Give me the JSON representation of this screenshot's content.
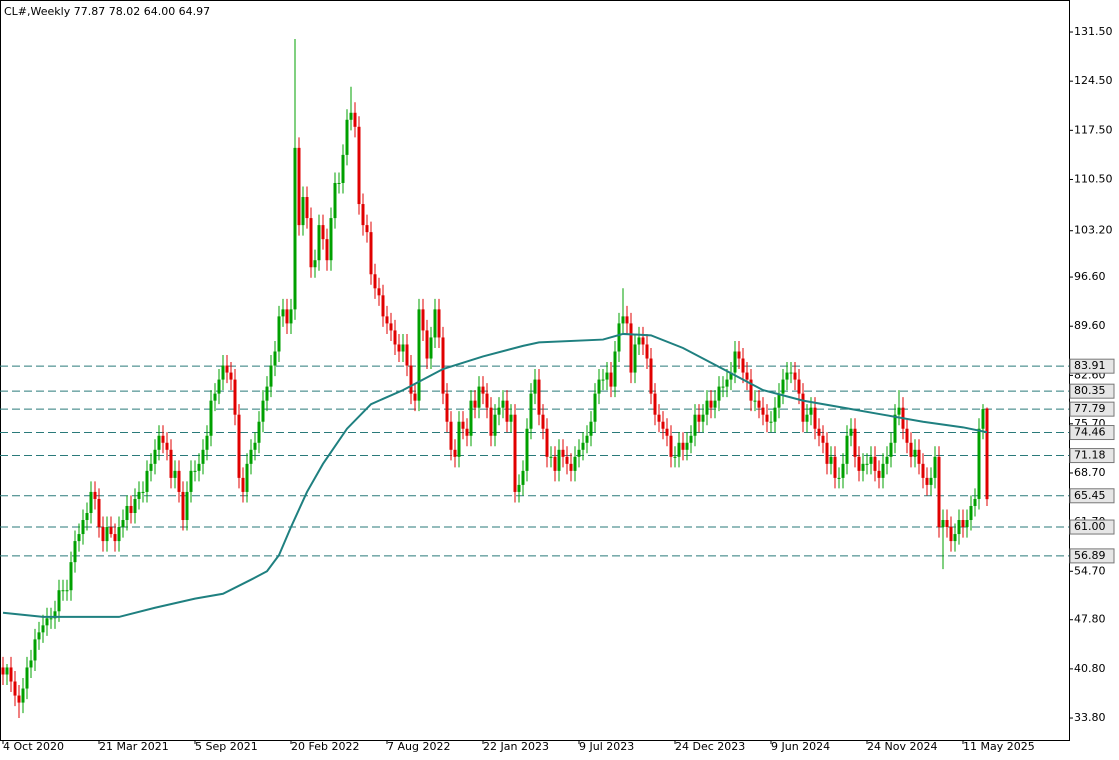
{
  "chart_data": {
    "type": "candlestick",
    "title": "CL#,Weekly  77.87 78.02 64.00 64.97",
    "xlim": [
      -0.75,
      266.5
    ],
    "ylim": [
      30.67,
      136.06
    ],
    "xticks": [
      {
        "value": 0,
        "label": "4 Oct 2020"
      },
      {
        "value": 24,
        "label": "21 Mar 2021"
      },
      {
        "value": 48,
        "label": "5 Sep 2021"
      },
      {
        "value": 72,
        "label": "20 Feb 2022"
      },
      {
        "value": 96,
        "label": "7 Aug 2022"
      },
      {
        "value": 120,
        "label": "22 Jan 2023"
      },
      {
        "value": 144,
        "label": "9 Jul 2023"
      },
      {
        "value": 168,
        "label": "24 Dec 2023"
      },
      {
        "value": 192,
        "label": "9 Jun 2024"
      },
      {
        "value": 216,
        "label": "24 Nov 2024"
      },
      {
        "value": 240,
        "label": "11 May 2025"
      }
    ],
    "yticks": [
      {
        "value": 131.5,
        "label": "131.50"
      },
      {
        "value": 124.5,
        "label": "124.50"
      },
      {
        "value": 117.5,
        "label": "117.50"
      },
      {
        "value": 110.5,
        "label": "110.50"
      },
      {
        "value": 103.2,
        "label": "103.20"
      },
      {
        "value": 96.6,
        "label": "96.60"
      },
      {
        "value": 89.6,
        "label": "89.60"
      },
      {
        "value": 82.6,
        "label": "82.60"
      },
      {
        "value": 75.7,
        "label": "75.70"
      },
      {
        "value": 68.7,
        "label": "68.70"
      },
      {
        "value": 61.7,
        "label": "61.70"
      },
      {
        "value": 54.7,
        "label": "54.70"
      },
      {
        "value": 47.8,
        "label": "47.80"
      },
      {
        "value": 40.8,
        "label": "40.80"
      },
      {
        "value": 33.8,
        "label": "33.80"
      }
    ],
    "up_color": "#00a000",
    "down_color": "#e00000",
    "open": [
      41,
      40,
      41,
      39,
      37,
      36,
      38,
      41,
      42,
      45,
      46,
      47,
      48,
      48,
      49,
      52,
      52,
      52,
      56,
      59,
      60,
      62,
      63,
      66,
      65,
      61,
      59,
      61,
      60,
      59,
      61,
      62,
      64,
      63,
      65,
      66,
      66,
      69,
      70,
      72,
      74,
      73,
      72,
      68,
      69,
      66,
      62,
      66,
      69,
      69,
      70,
      72,
      74,
      79,
      80,
      82,
      84,
      83,
      82,
      77,
      68,
      66,
      70,
      72,
      73,
      76,
      79,
      81,
      84,
      86,
      91,
      92,
      90,
      92,
      115,
      104,
      108,
      105,
      98,
      99,
      104,
      102,
      99,
      105,
      110,
      110,
      114,
      119,
      120,
      118,
      107,
      104,
      103,
      97,
      95,
      94,
      91,
      90,
      89,
      87,
      86,
      87,
      84,
      80,
      79,
      92,
      89,
      85,
      88,
      92,
      88,
      80,
      76,
      72,
      71,
      76,
      75,
      74,
      79,
      78,
      81,
      80,
      78,
      74,
      77,
      78,
      79,
      76,
      77,
      66,
      67,
      69,
      75,
      80,
      82,
      77,
      75,
      71,
      71,
      69,
      72,
      71,
      70,
      69,
      71,
      72,
      73,
      74,
      76,
      80,
      82,
      82,
      83,
      81,
      86,
      90,
      91,
      90,
      83,
      87,
      88,
      87,
      85,
      80,
      77,
      76,
      75,
      74,
      71,
      71,
      73,
      72,
      73,
      74,
      77,
      76,
      77,
      79,
      78,
      79,
      81,
      81,
      82,
      83,
      86,
      85,
      83,
      82,
      79,
      79,
      78,
      77,
      76,
      76,
      78,
      80,
      82,
      83,
      83,
      82,
      80,
      76,
      77,
      78,
      75,
      74,
      73,
      70,
      71,
      68,
      68,
      70,
      74,
      75,
      71,
      69,
      70,
      70,
      71,
      69,
      68,
      70,
      71,
      73,
      77,
      78,
      75,
      73,
      71,
      72,
      70,
      68,
      67,
      68,
      71,
      61,
      62,
      61,
      59,
      60,
      62,
      61,
      62,
      64,
      65,
      75,
      77.87
    ],
    "high": [
      42.5,
      41.5,
      42.5,
      40.5,
      38.5,
      39.5,
      42.5,
      43.5,
      46.5,
      47.5,
      48.5,
      49.5,
      49.5,
      50.5,
      53.5,
      53.5,
      53.5,
      57.5,
      60.5,
      61.5,
      63.5,
      64.5,
      67.5,
      67.5,
      66.5,
      62.5,
      62.5,
      62.5,
      61.5,
      62.5,
      63.5,
      65.5,
      65.5,
      66.5,
      67.5,
      67.5,
      70.5,
      71.5,
      73.5,
      75.5,
      75.5,
      74.5,
      73.5,
      70.5,
      70.5,
      67.5,
      67.5,
      70.5,
      70.5,
      71.5,
      73.5,
      75.5,
      80.5,
      81.5,
      83.5,
      85.5,
      85.5,
      84.5,
      83.5,
      78.5,
      69.5,
      71.5,
      73.5,
      74.5,
      77.5,
      80.5,
      82.5,
      85.5,
      87.5,
      92.5,
      93.5,
      93.5,
      93.5,
      130.5,
      116.5,
      109.5,
      109.5,
      106.5,
      100.5,
      105.5,
      105.5,
      103.5,
      106.5,
      111.5,
      111.5,
      115.5,
      120.5,
      123.7,
      121.5,
      119.5,
      108.5,
      105.5,
      104.5,
      98.5,
      96.5,
      95.5,
      92.5,
      91.5,
      90.5,
      88.5,
      88.5,
      88.5,
      85.5,
      81.5,
      93.5,
      93.5,
      90.5,
      89.5,
      93.5,
      93.5,
      89.5,
      81.5,
      77.5,
      73.5,
      77.5,
      77.5,
      76.5,
      80.5,
      80.5,
      82.5,
      82.5,
      81.5,
      79.5,
      78.5,
      79.5,
      80.5,
      80.5,
      78.5,
      78.5,
      68.5,
      70.5,
      76.5,
      81.5,
      83.5,
      83.5,
      78.5,
      76.5,
      72.5,
      72.5,
      73.5,
      73.5,
      72.5,
      71.5,
      72.5,
      73.5,
      74.5,
      75.5,
      77.5,
      81.5,
      83.5,
      83.5,
      84.5,
      84.5,
      87.5,
      91.5,
      95,
      92.5,
      91.5,
      88.5,
      89.5,
      89.5,
      88.5,
      86.5,
      81.5,
      78.5,
      77.5,
      76.5,
      75.5,
      72.5,
      74.5,
      74.5,
      74.5,
      75.5,
      78.5,
      78.5,
      78.5,
      80.5,
      80.5,
      80.5,
      82.5,
      82.5,
      83.5,
      84.5,
      87.5,
      87.5,
      86.5,
      84.5,
      83.5,
      80.5,
      80.5,
      79.5,
      78.5,
      77.5,
      79.5,
      81.5,
      83.5,
      84.5,
      84.5,
      84.5,
      83.5,
      81.5,
      78.5,
      79.5,
      79.5,
      76.5,
      75.5,
      74.5,
      72.5,
      72.5,
      69.5,
      71.5,
      75.5,
      76.5,
      76.5,
      72.5,
      71.5,
      71.5,
      72.5,
      72.5,
      70.5,
      71.5,
      72.5,
      74.5,
      78.5,
      80.5,
      79.5,
      76.5,
      74.5,
      73.5,
      73.5,
      71.5,
      69.5,
      69.5,
      72.5,
      72.5,
      63.5,
      63.5,
      62.5,
      61.5,
      63.5,
      63.5,
      63.5,
      65.5,
      66.5,
      76.5,
      78.5,
      78.02
    ],
    "low": [
      38.5,
      38.5,
      37.5,
      35.5,
      33.8,
      34.5,
      36.5,
      39.5,
      40.5,
      43.5,
      44.5,
      45.5,
      46.5,
      46.5,
      47.5,
      50.5,
      50.5,
      50.5,
      54.5,
      57.5,
      58.5,
      60.5,
      61.5,
      63.5,
      59.5,
      57.5,
      57.5,
      59.5,
      57.5,
      57.5,
      59.5,
      60.5,
      61.5,
      61.5,
      63.5,
      64.5,
      64.5,
      67.5,
      68.5,
      70.5,
      71.5,
      70.5,
      66.5,
      66.5,
      64.5,
      60.5,
      60.5,
      64.5,
      67.5,
      67.5,
      68.5,
      70.5,
      72.5,
      77.5,
      78.5,
      80.5,
      81.5,
      80.5,
      75.5,
      66.5,
      64.5,
      64.5,
      68.5,
      70.5,
      71.5,
      74.5,
      77.5,
      79.5,
      82.5,
      84.5,
      89.5,
      88.5,
      88.5,
      90.5,
      102.5,
      102.5,
      103.5,
      96.5,
      96.5,
      97.5,
      100.5,
      97.5,
      97.5,
      103.5,
      108.5,
      108.5,
      112.5,
      117.5,
      116.5,
      105.5,
      102.5,
      101.5,
      95.5,
      93.5,
      92.5,
      89.5,
      88.5,
      87.5,
      85.5,
      84.5,
      84.5,
      82.5,
      78.5,
      77.5,
      77.5,
      87.5,
      83.5,
      83.5,
      86.5,
      86.5,
      78.5,
      74.5,
      70.5,
      69.5,
      69.5,
      73.5,
      72.5,
      72.5,
      76.5,
      76.5,
      78.5,
      76.5,
      72.5,
      72.5,
      75.5,
      76.5,
      74.5,
      74.5,
      64.5,
      64.5,
      65.5,
      67.5,
      73.5,
      78.5,
      75.5,
      73.5,
      69.5,
      69.5,
      67.5,
      67.5,
      69.5,
      68.5,
      67.5,
      67.5,
      69.5,
      70.5,
      71.5,
      72.5,
      74.5,
      78.5,
      80.5,
      80.5,
      79.5,
      79.5,
      84.5,
      88.5,
      88.5,
      81.5,
      81.5,
      85.5,
      85.5,
      83.5,
      78.5,
      75.5,
      74.5,
      73.5,
      72.5,
      69.5,
      69.5,
      69.5,
      70.5,
      70.5,
      71.5,
      72.5,
      74.5,
      74.5,
      75.5,
      76.5,
      76.5,
      77.5,
      79.5,
      79.5,
      80.5,
      81.5,
      83.5,
      81.5,
      80.5,
      77.5,
      77.5,
      76.5,
      75.5,
      74.5,
      74.5,
      74.5,
      76.5,
      78.5,
      80.5,
      81.5,
      80.5,
      78.5,
      74.5,
      74.5,
      75.5,
      73.5,
      72.5,
      71.5,
      68.5,
      68.5,
      66.5,
      66.5,
      66.5,
      68.5,
      72.5,
      69.5,
      67.5,
      67.5,
      68.5,
      68.5,
      67.5,
      66.5,
      66.5,
      68.5,
      69.5,
      71.5,
      75.5,
      73.5,
      71.5,
      69.5,
      69.5,
      68.5,
      66.5,
      65.5,
      65.5,
      66.5,
      59.5,
      55,
      59.5,
      57.5,
      57.5,
      58.5,
      59.5,
      59.5,
      60.5,
      62.5,
      63.5,
      73.5,
      64
    ],
    "close": [
      40,
      41,
      39,
      37,
      36,
      38,
      41,
      42,
      45,
      46,
      47,
      48,
      48,
      49,
      52,
      52,
      52,
      56,
      59,
      60,
      62,
      63,
      66,
      65,
      61,
      59,
      61,
      60,
      59,
      61,
      62,
      64,
      63,
      65,
      66,
      66,
      69,
      70,
      72,
      74,
      73,
      72,
      68,
      69,
      66,
      62,
      66,
      69,
      69,
      70,
      72,
      74,
      79,
      80,
      82,
      84,
      83,
      82,
      77,
      68,
      66,
      70,
      72,
      73,
      76,
      79,
      81,
      84,
      86,
      91,
      92,
      90,
      92,
      115,
      104,
      108,
      105,
      98,
      99,
      104,
      102,
      99,
      105,
      110,
      110,
      114,
      119,
      120,
      118,
      107,
      104,
      103,
      97,
      95,
      94,
      91,
      90,
      89,
      87,
      86,
      87,
      84,
      80,
      79,
      92,
      89,
      85,
      88,
      92,
      88,
      80,
      76,
      72,
      71,
      76,
      75,
      74,
      79,
      78,
      81,
      80,
      78,
      74,
      77,
      78,
      79,
      76,
      77,
      66,
      67,
      69,
      75,
      80,
      82,
      77,
      75,
      71,
      71,
      69,
      72,
      71,
      70,
      69,
      71,
      72,
      73,
      74,
      76,
      80,
      82,
      82,
      83,
      81,
      86,
      90,
      91,
      90,
      83,
      87,
      88,
      87,
      85,
      80,
      77,
      76,
      75,
      74,
      71,
      71,
      73,
      72,
      73,
      74,
      77,
      76,
      77,
      79,
      78,
      79,
      81,
      81,
      82,
      83,
      86,
      85,
      83,
      82,
      79,
      79,
      78,
      77,
      76,
      76,
      78,
      80,
      82,
      83,
      83,
      82,
      80,
      76,
      77,
      78,
      75,
      74,
      73,
      70,
      71,
      68,
      68,
      70,
      74,
      75,
      71,
      69,
      70,
      70,
      71,
      69,
      68,
      70,
      71,
      73,
      77,
      78,
      75,
      73,
      71,
      72,
      70,
      68,
      67,
      68,
      71,
      61,
      62,
      61,
      59,
      60,
      62,
      61,
      62,
      64,
      65,
      75,
      77.8,
      64.97
    ],
    "moving_average": {
      "color": "#1f8080",
      "x": [
        0,
        10,
        29,
        38,
        48,
        55,
        62,
        66,
        69,
        72,
        76,
        80,
        86,
        92,
        100,
        110,
        120,
        130,
        134,
        150,
        155,
        162,
        170,
        180,
        190,
        200,
        210,
        220,
        230,
        240,
        246
      ],
      "values": [
        48.8,
        48.2,
        48.2,
        49.5,
        50.8,
        51.5,
        53.5,
        54.7,
        57,
        61,
        66,
        70,
        75,
        78.5,
        80.5,
        83.5,
        85.3,
        86.8,
        87.3,
        87.7,
        88.5,
        88.3,
        86.5,
        83.5,
        80.5,
        79,
        78,
        77,
        76,
        75.2,
        74.5
      ]
    },
    "level_color": "#2a7a7a",
    "levels": [
      {
        "value": 83.91,
        "label": "83.91"
      },
      {
        "value": 80.35,
        "label": "80.35"
      },
      {
        "value": 77.79,
        "label": "77.79"
      },
      {
        "value": 74.46,
        "label": "74.46"
      },
      {
        "value": 71.18,
        "label": "71.18"
      },
      {
        "value": 65.45,
        "label": "65.45"
      },
      {
        "value": 61.0,
        "label": "61.00"
      },
      {
        "value": 56.89,
        "label": "56.89"
      }
    ]
  }
}
